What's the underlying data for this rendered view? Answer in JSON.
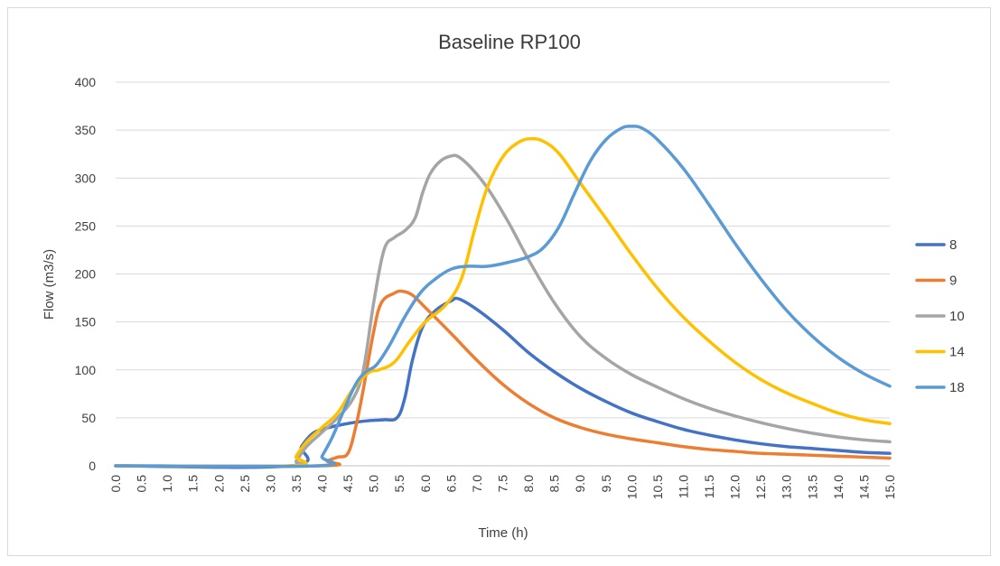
{
  "chart_data": {
    "type": "line",
    "title": "Baseline RP100",
    "xlabel": "Time (h)",
    "ylabel": "Flow (m3/s)",
    "xlim": [
      0,
      15
    ],
    "ylim": [
      0,
      400
    ],
    "grid": true,
    "legend_position": "right",
    "x_ticks": [
      "0.0",
      "0.5",
      "1.0",
      "1.5",
      "2.0",
      "2.5",
      "3.0",
      "3.5",
      "4.0",
      "4.5",
      "5.0",
      "5.5",
      "6.0",
      "6.5",
      "7.0",
      "7.5",
      "8.0",
      "8.5",
      "9.0",
      "9.5",
      "10.0",
      "10.5",
      "11.0",
      "11.5",
      "12.0",
      "12.5",
      "13.0",
      "13.5",
      "14.0",
      "14.5",
      "15.0"
    ],
    "y_ticks": [
      "0",
      "50",
      "100",
      "150",
      "200",
      "250",
      "300",
      "350",
      "400"
    ],
    "series": [
      {
        "name": "8",
        "color": "#4472C4",
        "points": [
          [
            0,
            0
          ],
          [
            3.4,
            0
          ],
          [
            3.6,
            20
          ],
          [
            3.8,
            33
          ],
          [
            4.0,
            38
          ],
          [
            4.3,
            42
          ],
          [
            4.6,
            45
          ],
          [
            4.9,
            47
          ],
          [
            5.2,
            48
          ],
          [
            5.45,
            50
          ],
          [
            5.6,
            70
          ],
          [
            5.75,
            110
          ],
          [
            5.95,
            145
          ],
          [
            6.2,
            162
          ],
          [
            6.5,
            172
          ],
          [
            6.65,
            174
          ],
          [
            7.0,
            163
          ],
          [
            7.5,
            142
          ],
          [
            8.0,
            118
          ],
          [
            8.5,
            98
          ],
          [
            9.0,
            81
          ],
          [
            9.5,
            67
          ],
          [
            10.0,
            55
          ],
          [
            10.5,
            46
          ],
          [
            11.0,
            38
          ],
          [
            11.5,
            32
          ],
          [
            12.0,
            27
          ],
          [
            12.5,
            23
          ],
          [
            13.0,
            20
          ],
          [
            13.5,
            18
          ],
          [
            14.0,
            16
          ],
          [
            14.5,
            14
          ],
          [
            15.0,
            13
          ]
        ]
      },
      {
        "name": "9",
        "color": "#ED7D31",
        "points": [
          [
            0,
            0
          ],
          [
            4.0,
            0
          ],
          [
            4.1,
            5
          ],
          [
            4.3,
            9
          ],
          [
            4.5,
            13
          ],
          [
            4.65,
            40
          ],
          [
            4.8,
            80
          ],
          [
            5.0,
            140
          ],
          [
            5.15,
            170
          ],
          [
            5.4,
            180
          ],
          [
            5.55,
            182
          ],
          [
            5.75,
            178
          ],
          [
            6.0,
            165
          ],
          [
            6.5,
            138
          ],
          [
            7.0,
            110
          ],
          [
            7.5,
            85
          ],
          [
            8.0,
            65
          ],
          [
            8.5,
            50
          ],
          [
            9.0,
            40
          ],
          [
            9.5,
            33
          ],
          [
            10.0,
            28
          ],
          [
            10.5,
            24
          ],
          [
            11.0,
            20
          ],
          [
            11.5,
            17
          ],
          [
            12.0,
            15
          ],
          [
            12.5,
            13
          ],
          [
            13.0,
            12
          ],
          [
            13.5,
            11
          ],
          [
            14.0,
            10
          ],
          [
            14.5,
            9
          ],
          [
            15.0,
            8
          ]
        ]
      },
      {
        "name": "10",
        "color": "#A5A5A5",
        "points": [
          [
            0,
            0
          ],
          [
            3.4,
            0
          ],
          [
            3.5,
            5
          ],
          [
            3.7,
            20
          ],
          [
            4.0,
            35
          ],
          [
            4.3,
            50
          ],
          [
            4.6,
            70
          ],
          [
            4.8,
            100
          ],
          [
            5.0,
            170
          ],
          [
            5.2,
            225
          ],
          [
            5.4,
            238
          ],
          [
            5.6,
            245
          ],
          [
            5.8,
            258
          ],
          [
            5.95,
            285
          ],
          [
            6.1,
            305
          ],
          [
            6.3,
            318
          ],
          [
            6.5,
            323
          ],
          [
            6.65,
            322
          ],
          [
            6.9,
            310
          ],
          [
            7.2,
            290
          ],
          [
            7.6,
            255
          ],
          [
            8.0,
            215
          ],
          [
            8.5,
            170
          ],
          [
            9.0,
            135
          ],
          [
            9.5,
            112
          ],
          [
            10.0,
            95
          ],
          [
            10.5,
            82
          ],
          [
            11.0,
            70
          ],
          [
            11.5,
            60
          ],
          [
            12.0,
            52
          ],
          [
            12.5,
            45
          ],
          [
            13.0,
            39
          ],
          [
            13.5,
            34
          ],
          [
            14.0,
            30
          ],
          [
            14.5,
            27
          ],
          [
            15.0,
            25
          ]
        ]
      },
      {
        "name": "14",
        "color": "#FFC000",
        "points": [
          [
            0,
            0
          ],
          [
            3.4,
            0
          ],
          [
            3.5,
            10
          ],
          [
            3.7,
            25
          ],
          [
            4.0,
            40
          ],
          [
            4.3,
            55
          ],
          [
            4.6,
            80
          ],
          [
            4.9,
            97
          ],
          [
            5.1,
            100
          ],
          [
            5.4,
            108
          ],
          [
            5.7,
            130
          ],
          [
            6.0,
            150
          ],
          [
            6.4,
            168
          ],
          [
            6.7,
            195
          ],
          [
            6.95,
            245
          ],
          [
            7.2,
            290
          ],
          [
            7.5,
            322
          ],
          [
            7.8,
            337
          ],
          [
            8.05,
            341
          ],
          [
            8.3,
            338
          ],
          [
            8.6,
            325
          ],
          [
            9.0,
            295
          ],
          [
            9.5,
            258
          ],
          [
            10.0,
            220
          ],
          [
            10.5,
            185
          ],
          [
            11.0,
            155
          ],
          [
            11.5,
            130
          ],
          [
            12.0,
            108
          ],
          [
            12.5,
            90
          ],
          [
            13.0,
            76
          ],
          [
            13.5,
            65
          ],
          [
            14.0,
            55
          ],
          [
            14.5,
            48
          ],
          [
            15.0,
            44
          ]
        ]
      },
      {
        "name": "18",
        "color": "#5B9BD5",
        "points": [
          [
            0,
            0
          ],
          [
            3.9,
            0
          ],
          [
            4.0,
            10
          ],
          [
            4.2,
            30
          ],
          [
            4.4,
            55
          ],
          [
            4.65,
            85
          ],
          [
            4.85,
            98
          ],
          [
            5.05,
            105
          ],
          [
            5.3,
            125
          ],
          [
            5.6,
            155
          ],
          [
            5.9,
            180
          ],
          [
            6.2,
            195
          ],
          [
            6.5,
            205
          ],
          [
            6.8,
            208
          ],
          [
            7.2,
            208
          ],
          [
            7.6,
            212
          ],
          [
            8.0,
            218
          ],
          [
            8.3,
            228
          ],
          [
            8.6,
            250
          ],
          [
            8.9,
            285
          ],
          [
            9.2,
            318
          ],
          [
            9.5,
            340
          ],
          [
            9.8,
            352
          ],
          [
            10.0,
            354
          ],
          [
            10.2,
            352
          ],
          [
            10.5,
            340
          ],
          [
            11.0,
            310
          ],
          [
            11.5,
            272
          ],
          [
            12.0,
            232
          ],
          [
            12.5,
            195
          ],
          [
            13.0,
            162
          ],
          [
            13.5,
            135
          ],
          [
            14.0,
            113
          ],
          [
            14.5,
            96
          ],
          [
            15.0,
            83
          ]
        ]
      }
    ]
  }
}
